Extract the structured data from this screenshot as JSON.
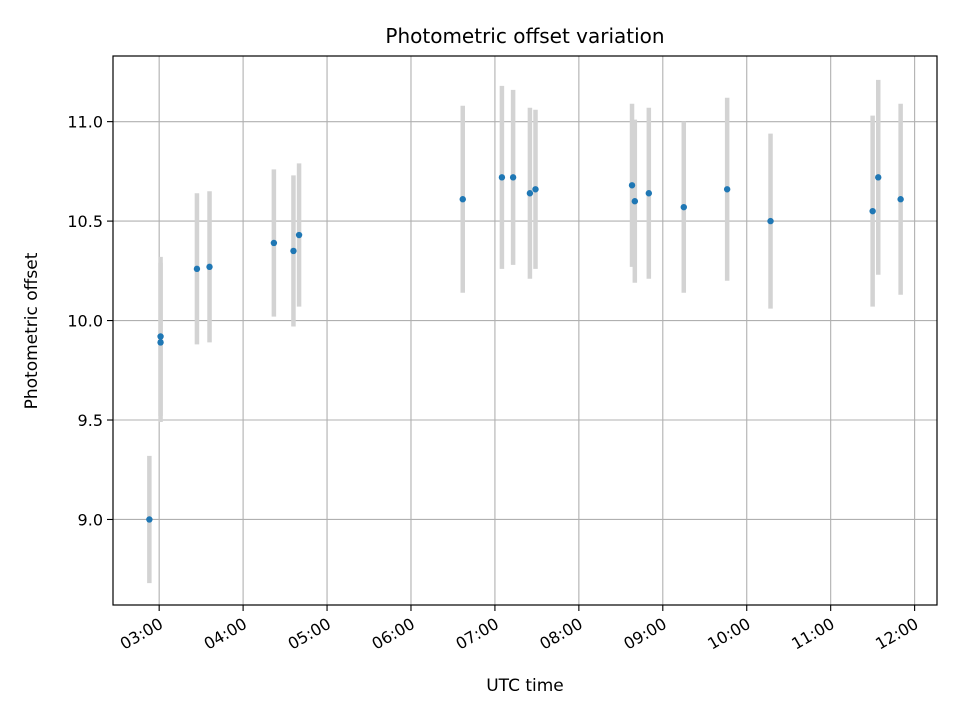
{
  "chart_data": {
    "type": "scatter",
    "title": "Photometric offset variation",
    "xlabel": "UTC time",
    "ylabel": "Photometric offset",
    "x_ticks": [
      "03:00",
      "04:00",
      "05:00",
      "06:00",
      "07:00",
      "08:00",
      "09:00",
      "10:00",
      "11:00",
      "12:00"
    ],
    "y_ticks": [
      "9.0",
      "9.5",
      "10.0",
      "10.5",
      "11.0"
    ],
    "xlim": [
      "02:27",
      "12:16"
    ],
    "ylim": [
      8.57,
      11.33
    ],
    "grid": true,
    "colors": {
      "point": "#1f77b4",
      "errorbar": "#d3d3d3",
      "grid": "#b0b0b0"
    },
    "points": [
      {
        "t": "02:53",
        "y": 9.0,
        "err": 0.32
      },
      {
        "t": "03:01",
        "y": 9.92,
        "err": 0.4
      },
      {
        "t": "03:01",
        "y": 9.89,
        "err": 0.4
      },
      {
        "t": "03:27",
        "y": 10.26,
        "err": 0.38
      },
      {
        "t": "03:36",
        "y": 10.27,
        "err": 0.38
      },
      {
        "t": "04:22",
        "y": 10.39,
        "err": 0.37
      },
      {
        "t": "04:36",
        "y": 10.35,
        "err": 0.38
      },
      {
        "t": "04:40",
        "y": 10.43,
        "err": 0.36
      },
      {
        "t": "06:37",
        "y": 10.61,
        "err": 0.47
      },
      {
        "t": "07:05",
        "y": 10.72,
        "err": 0.46
      },
      {
        "t": "07:13",
        "y": 10.72,
        "err": 0.44
      },
      {
        "t": "07:25",
        "y": 10.64,
        "err": 0.43
      },
      {
        "t": "07:29",
        "y": 10.66,
        "err": 0.4
      },
      {
        "t": "08:38",
        "y": 10.68,
        "err": 0.41
      },
      {
        "t": "08:40",
        "y": 10.6,
        "err": 0.41
      },
      {
        "t": "08:50",
        "y": 10.64,
        "err": 0.43
      },
      {
        "t": "09:15",
        "y": 10.57,
        "err": 0.43
      },
      {
        "t": "09:46",
        "y": 10.66,
        "err": 0.46
      },
      {
        "t": "10:17",
        "y": 10.5,
        "err": 0.44
      },
      {
        "t": "11:30",
        "y": 10.55,
        "err": 0.48
      },
      {
        "t": "11:34",
        "y": 10.72,
        "err": 0.49
      },
      {
        "t": "11:50",
        "y": 10.61,
        "err": 0.48
      }
    ]
  }
}
